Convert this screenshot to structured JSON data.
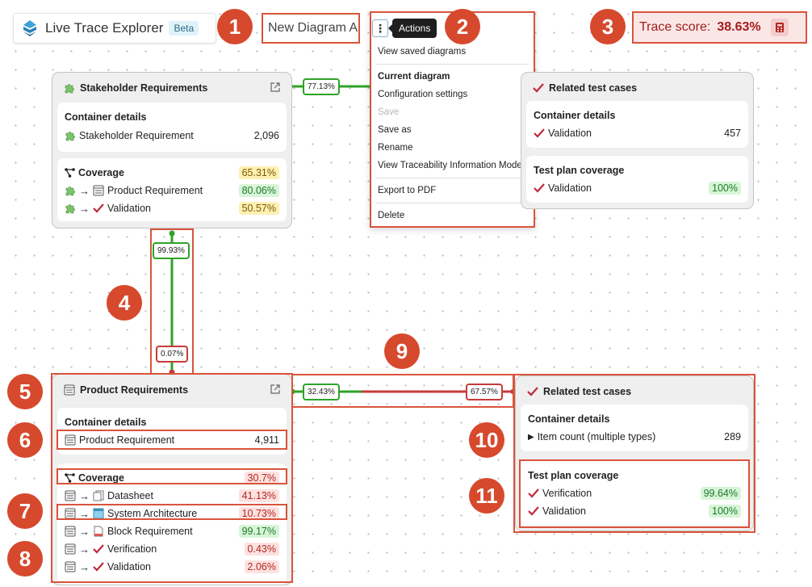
{
  "header": {
    "app_title": "Live Trace Explorer",
    "beta_label": "Beta",
    "diagram_name": "New Diagram A",
    "actions_tooltip": "Actions",
    "trace_score_label": "Trace score:",
    "trace_score_value": "38.63%"
  },
  "actions_menu": {
    "items": [
      {
        "label": "View saved diagrams"
      },
      {
        "label": "Current diagram"
      },
      {
        "label": "Configuration settings"
      },
      {
        "label": "Save"
      },
      {
        "label": "Save as"
      },
      {
        "label": "Rename"
      },
      {
        "label": "View Traceability Information Model"
      },
      {
        "label": "Export to PDF"
      },
      {
        "label": "Delete"
      }
    ]
  },
  "callouts": [
    "1",
    "2",
    "3",
    "4",
    "5",
    "6",
    "7",
    "8",
    "9",
    "10",
    "11"
  ],
  "stakeholder_node": {
    "title": "Stakeholder Requirements",
    "container_details_label": "Container details",
    "item_label": "Stakeholder Requirement",
    "item_count": "2,096",
    "coverage_label": "Coverage",
    "coverage_value": "65.31%",
    "rows": [
      {
        "label": "Product Requirement",
        "value": "80.06%"
      },
      {
        "label": "Validation",
        "value": "50.57%"
      }
    ]
  },
  "related_top": {
    "title": "Related test cases",
    "container_details_label": "Container details",
    "item_label": "Validation",
    "item_count": "457",
    "plan_label": "Test plan coverage",
    "plan_item": "Validation",
    "plan_value": "100%"
  },
  "product_node": {
    "title": "Product Requirements",
    "container_details_label": "Container details",
    "item_label": "Product Requirement",
    "item_count": "4,911",
    "coverage_label": "Coverage",
    "coverage_value": "30.7%",
    "rows": [
      {
        "label": "Datasheet",
        "value": "41.13%"
      },
      {
        "label": "System Architecture",
        "value": "10.73%"
      },
      {
        "label": "Block Requirement",
        "value": "99.17%"
      },
      {
        "label": "Verification",
        "value": "0.43%"
      },
      {
        "label": "Validation",
        "value": "2.06%"
      }
    ]
  },
  "related_bottom": {
    "title": "Related test cases",
    "container_details_label": "Container details",
    "item_label": "Item count (multiple types)",
    "item_count": "289",
    "plan_label": "Test plan coverage",
    "plan_rows": [
      {
        "label": "Verification",
        "value": "99.64%"
      },
      {
        "label": "Validation",
        "value": "100%"
      }
    ]
  },
  "edges": {
    "top_horizontal": "77.13%",
    "vertical_top": "99.93%",
    "vertical_bottom": "0.07%",
    "bottom_left": "32.43%",
    "bottom_right": "67.57%"
  },
  "colors": {
    "callout": "#d6492d",
    "green_edge": "#2fa329",
    "red_edge": "#c63b3b"
  }
}
